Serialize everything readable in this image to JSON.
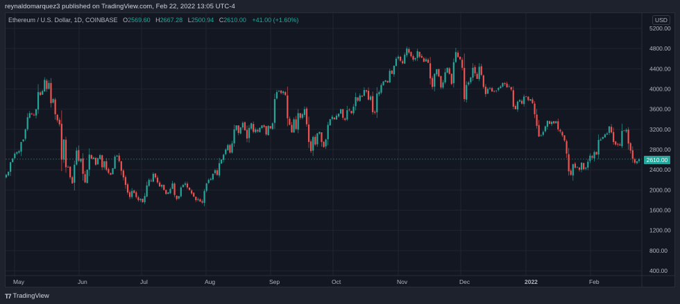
{
  "header": {
    "publisher_text": "reynaldomarquez3 published on TradingView.com, Feb 22, 2022 13:05 UTC-4"
  },
  "legend": {
    "symbol": "Ethereum / U.S. Dollar, 1D, COINBASE",
    "o_label": "O",
    "o_value": "2569.60",
    "h_label": "H",
    "h_value": "2667.28",
    "l_label": "L",
    "l_value": "2500.94",
    "c_label": "C",
    "c_value": "2610.00",
    "change": "+41.00 (+1.60%)"
  },
  "price_axis": {
    "currency": "USD",
    "last_price": "2610.00",
    "ticks": [
      "5200.00",
      "4800.00",
      "4400.00",
      "4000.00",
      "3600.00",
      "3200.00",
      "2800.00",
      "2400.00",
      "2000.00",
      "1600.00",
      "1200.00",
      "800.00",
      "400.00"
    ]
  },
  "time_axis": {
    "ticks": [
      {
        "label": "May",
        "x": 28
      },
      {
        "label": "Jun",
        "x": 121
      },
      {
        "label": "Jul",
        "x": 211
      },
      {
        "label": "Aug",
        "x": 304
      },
      {
        "label": "Sep",
        "x": 397
      },
      {
        "label": "Oct",
        "x": 487
      },
      {
        "label": "Nov",
        "x": 581
      },
      {
        "label": "Dec",
        "x": 671
      },
      {
        "label": "2022",
        "x": 765,
        "bold": true
      },
      {
        "label": "Feb",
        "x": 858
      }
    ]
  },
  "footer": {
    "brand": "TradingView"
  },
  "colors": {
    "up": "#26a69a",
    "down": "#ef5350",
    "bg": "#131722",
    "grid": "#1f2430",
    "text": "#b2b5be"
  },
  "chart_data": {
    "type": "candlestick",
    "title": "Ethereum / U.S. Dollar, 1D, COINBASE",
    "xlabel": "",
    "ylabel": "USD",
    "ylim": [
      400,
      5200
    ],
    "x_range": [
      "2021-04-23",
      "2022-02-22"
    ],
    "grid": true,
    "last": {
      "open": 2569.6,
      "high": 2667.28,
      "low": 2500.94,
      "close": 2610.0,
      "change": 41.0,
      "change_pct": 1.6
    },
    "closes": [
      2300,
      2360,
      2550,
      2620,
      2720,
      2750,
      2770,
      2950,
      3000,
      3200,
      3440,
      3520,
      3500,
      3480,
      3600,
      3940,
      3880,
      3960,
      4180,
      4000,
      4120,
      3720,
      3800,
      3500,
      3380,
      3300,
      2600,
      3000,
      2450,
      2450,
      2250,
      2130,
      2500,
      2780,
      2580,
      2620,
      2320,
      2150,
      2400,
      2700,
      2620,
      2640,
      2500,
      2630,
      2690,
      2450,
      2570,
      2400,
      2340,
      2300,
      2430,
      2660,
      2680,
      2570,
      2380,
      2250,
      2100,
      1950,
      1860,
      1980,
      1940,
      1860,
      1800,
      1820,
      1760,
      1880,
      2090,
      2200,
      2180,
      2320,
      2250,
      2150,
      2070,
      2100,
      2000,
      1920,
      1950,
      2020,
      2130,
      1900,
      1820,
      1880,
      2050,
      2100,
      2130,
      2050,
      2000,
      1930,
      1870,
      1800,
      1820,
      1770,
      1750,
      1980,
      2130,
      2200,
      2220,
      2320,
      2390,
      2300,
      2530,
      2600,
      2700,
      2800,
      2890,
      2740,
      2920,
      3200,
      3280,
      3130,
      3240,
      3330,
      3180,
      3020,
      3230,
      3320,
      3150,
      3200,
      3160,
      3230,
      3280,
      3250,
      3100,
      3270,
      3220,
      3320,
      3800,
      3940,
      3960,
      3920,
      3950,
      3880,
      3420,
      3290,
      3140,
      3400,
      3210,
      3520,
      3430,
      3500,
      3600,
      3300,
      2950,
      2770,
      3050,
      2900,
      3120,
      3150,
      2950,
      2850,
      3000,
      3290,
      3400,
      3450,
      3400,
      3470,
      3510,
      3600,
      3430,
      3390,
      3580,
      3580,
      3520,
      3650,
      3840,
      3770,
      3870,
      3850,
      3980,
      3950,
      3790,
      3850,
      3540,
      3530,
      3910,
      3940,
      4080,
      4150,
      4170,
      4130,
      4360,
      4300,
      4460,
      4600,
      4640,
      4560,
      4510,
      4680,
      4800,
      4720,
      4650,
      4580,
      4610,
      4750,
      4640,
      4620,
      4540,
      4590,
      4520,
      4210,
      4040,
      4300,
      4390,
      4250,
      4030,
      4130,
      4330,
      4420,
      4300,
      4100,
      4530,
      4730,
      4630,
      4590,
      4420,
      3800,
      4080,
      4130,
      4230,
      4420,
      4310,
      4200,
      4440,
      4280,
      4040,
      3900,
      4000,
      4020,
      3950,
      3960,
      3970,
      4020,
      4050,
      4120,
      4100,
      4030,
      4050,
      3990,
      3650,
      3600,
      3750,
      3780,
      3710,
      3850,
      3850,
      3780,
      3800,
      3720,
      3500,
      3270,
      3060,
      3080,
      3150,
      3260,
      3370,
      3310,
      3350,
      3320,
      3360,
      3200,
      3160,
      3080,
      2980,
      2720,
      2370,
      2300,
      2510,
      2440,
      2450,
      2400,
      2540,
      2410,
      2440,
      2560,
      2680,
      2640,
      2750,
      2700,
      2990,
      3000,
      3050,
      3100,
      3120,
      3260,
      3140,
      2950,
      2900,
      2900,
      2880,
      3170,
      3170,
      3190,
      2920,
      2780,
      2620,
      2540,
      2570,
      2610
    ]
  }
}
